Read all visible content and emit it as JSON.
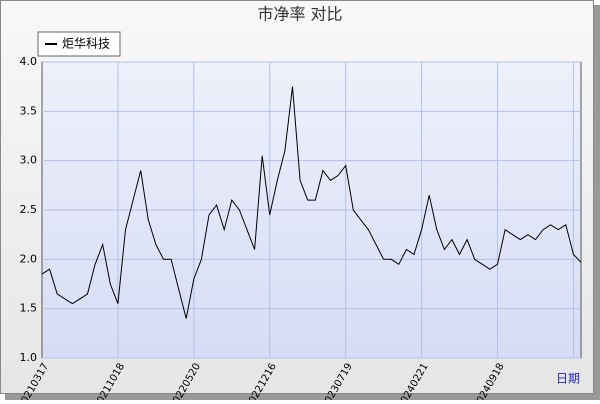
{
  "chart_data": {
    "type": "line",
    "title": "市净率  对比",
    "x_label": "日期",
    "categories": [
      "20210317",
      null,
      null,
      null,
      null,
      null,
      null,
      null,
      null,
      null,
      "20211018",
      null,
      null,
      null,
      null,
      null,
      null,
      null,
      null,
      null,
      "20220520",
      null,
      null,
      null,
      null,
      null,
      null,
      null,
      null,
      null,
      "20221216",
      null,
      null,
      null,
      null,
      null,
      null,
      null,
      null,
      null,
      "20230719",
      null,
      null,
      null,
      null,
      null,
      null,
      null,
      null,
      null,
      "20240221",
      null,
      null,
      null,
      null,
      null,
      null,
      null,
      null,
      null,
      "20240918",
      null,
      null,
      null,
      null,
      null,
      null,
      null,
      null,
      null,
      null,
      null
    ],
    "series": [
      {
        "name": "炬华科技",
        "color": "#000000",
        "values": [
          1.85,
          1.9,
          1.65,
          1.6,
          1.55,
          1.6,
          1.65,
          1.95,
          2.15,
          1.75,
          1.55,
          2.3,
          2.6,
          2.9,
          2.4,
          2.15,
          2.0,
          2.0,
          1.7,
          1.4,
          1.8,
          2.0,
          2.45,
          2.55,
          2.3,
          2.6,
          2.5,
          2.3,
          2.1,
          3.05,
          2.45,
          2.8,
          3.1,
          3.75,
          2.8,
          2.6,
          2.6,
          2.9,
          2.8,
          2.85,
          2.95,
          2.5,
          2.4,
          2.3,
          2.15,
          2.0,
          2.0,
          1.95,
          2.1,
          2.05,
          2.3,
          2.65,
          2.3,
          2.1,
          2.2,
          2.05,
          2.2,
          2.0,
          1.95,
          1.9,
          1.95,
          2.3,
          2.25,
          2.2,
          2.25,
          2.2,
          2.3,
          2.35,
          2.3,
          2.35,
          2.05,
          1.97
        ]
      }
    ],
    "ylim": [
      1.0,
      4.0
    ],
    "yticks": [
      {
        "value": 1.0,
        "label": "1.0"
      },
      1.5,
      {
        "value": 2.0,
        "label": "2.0"
      },
      2.5,
      {
        "value": 3.0,
        "label": "3.0"
      },
      3.5,
      {
        "value": 4.0,
        "label": "4.0"
      }
    ],
    "grid": true,
    "legend": "top-left"
  }
}
